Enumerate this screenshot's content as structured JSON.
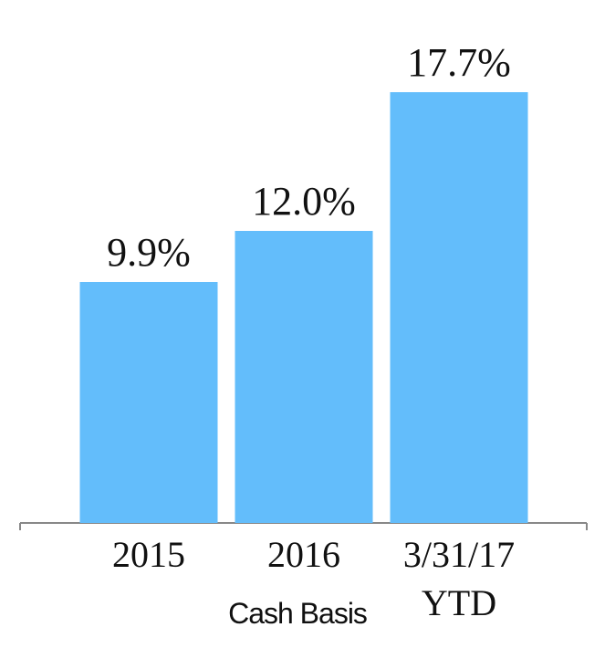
{
  "chart_data": {
    "type": "bar",
    "categories": [
      "2015",
      "2016",
      "3/31/17\nYTD"
    ],
    "values": [
      9.9,
      12.0,
      17.7
    ],
    "value_labels": [
      "9.9%",
      "12.0%",
      "17.7%"
    ],
    "color": "#63bdfb",
    "annotation": "Cash Basis"
  }
}
